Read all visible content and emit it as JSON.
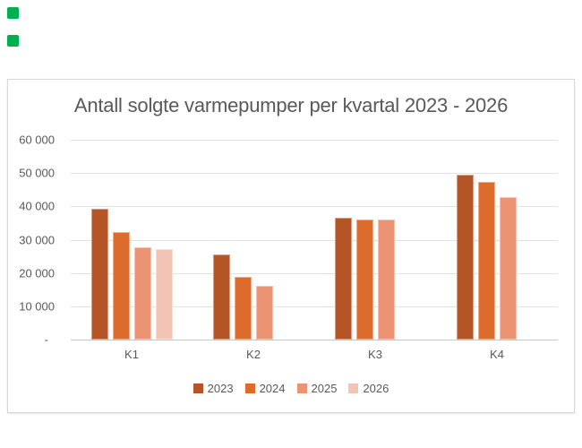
{
  "window": {
    "background": "#FFFFFF"
  },
  "markers": {
    "color": "#00B050",
    "count": 2
  },
  "chart_style": {
    "border_color": "#D6D6D6",
    "background": "#FFFFFF",
    "text_color": "#595959",
    "gridline_color": "#E2E2E2",
    "axis_line_color": "#C6C6C6"
  },
  "chart_data": {
    "type": "bar",
    "title": "Antall solgte varmepumper per kvartal 2023 - 2026",
    "categories": [
      "K1",
      "K2",
      "K3",
      "K4"
    ],
    "series": [
      {
        "name": "2023",
        "color": "#B55426",
        "values": [
          39400,
          25600,
          36500,
          49500
        ]
      },
      {
        "name": "2024",
        "color": "#DD6C2C",
        "values": [
          32200,
          18900,
          36000,
          47300
        ]
      },
      {
        "name": "2025",
        "color": "#EC9374",
        "values": [
          27700,
          16200,
          36100,
          42700
        ]
      },
      {
        "name": "2026",
        "color": "#F3C3B4",
        "values": [
          27200,
          null,
          null,
          null
        ]
      }
    ],
    "ylim": [
      0,
      60000
    ],
    "y_tick_step": 10000,
    "y_tick_labels": [
      "60 000",
      "50 000",
      "40 000",
      "30 000",
      "20 000",
      "10 000",
      "-"
    ],
    "xlabel": "",
    "ylabel": "",
    "grid": true,
    "legend_position": "bottom"
  }
}
